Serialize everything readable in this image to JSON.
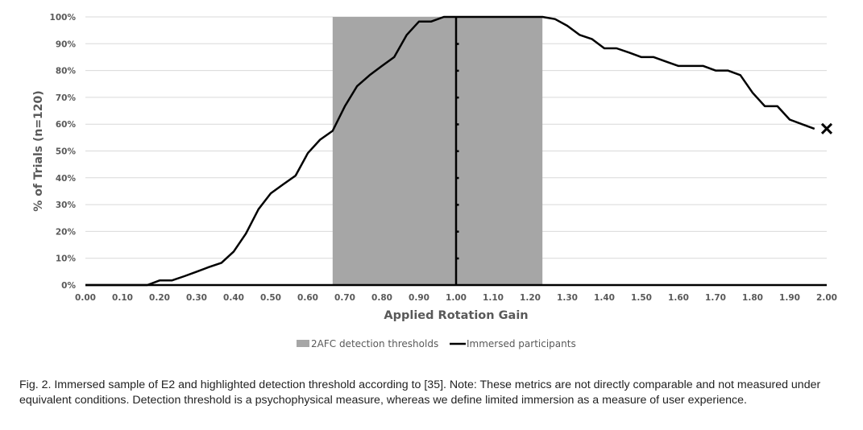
{
  "chart_data": {
    "type": "line",
    "xlabel": "Applied Rotation Gain",
    "ylabel": "% of Trials (n=120)",
    "xlim": [
      0,
      2
    ],
    "ylim": [
      0,
      100
    ],
    "x_ticks": [
      "0.00",
      "0.10",
      "0.20",
      "0.30",
      "0.40",
      "0.50",
      "0.60",
      "0.70",
      "0.80",
      "0.90",
      "1.00",
      "1.10",
      "1.20",
      "1.30",
      "1.40",
      "1.50",
      "1.60",
      "1.70",
      "1.80",
      "1.90",
      "2.00"
    ],
    "y_ticks": [
      "0%",
      "10%",
      "20%",
      "30%",
      "40%",
      "50%",
      "60%",
      "70%",
      "80%",
      "90%",
      "100%"
    ],
    "grid": "horizontal",
    "legend_position": "bottom",
    "legend": [
      "2AFC detection thresholds",
      "Immersed participants"
    ],
    "threshold_band": {
      "name": "2AFC detection thresholds",
      "from": 0.667,
      "to": 1.233,
      "color": "#a6a6a6"
    },
    "reference_line": {
      "x": 1.0
    },
    "series": [
      {
        "name": "Immersed participants",
        "color": "#000000",
        "x": [
          0.0,
          0.1,
          0.167,
          0.2,
          0.233,
          0.267,
          0.3,
          0.333,
          0.367,
          0.4,
          0.433,
          0.467,
          0.5,
          0.533,
          0.567,
          0.6,
          0.633,
          0.667,
          0.7,
          0.733,
          0.767,
          0.8,
          0.833,
          0.867,
          0.9,
          0.933,
          0.967,
          1.0,
          1.1,
          1.2,
          1.233,
          1.267,
          1.3,
          1.333,
          1.367,
          1.4,
          1.433,
          1.467,
          1.5,
          1.533,
          1.567,
          1.6,
          1.633,
          1.667,
          1.7,
          1.733,
          1.767,
          1.8,
          1.833,
          1.867,
          1.9,
          1.933,
          1.967
        ],
        "values": [
          0,
          0,
          0,
          1.7,
          1.7,
          3.3,
          5,
          6.7,
          8.3,
          12.5,
          19.2,
          28.3,
          34.2,
          37.5,
          40.8,
          49.2,
          54.2,
          57.5,
          66.7,
          74.2,
          78.3,
          81.7,
          85,
          93.3,
          98.3,
          98.3,
          100,
          100,
          100,
          100,
          100,
          99.2,
          96.7,
          93.3,
          91.7,
          88.3,
          88.3,
          86.7,
          85,
          85,
          83.3,
          81.7,
          81.7,
          81.7,
          80,
          80,
          78.3,
          71.7,
          66.7,
          66.7,
          61.7,
          60,
          58.3
        ]
      }
    ],
    "end_marker": {
      "x": 2.0,
      "y": 58.3,
      "symbol": "×"
    }
  },
  "caption": "Fig. 2. Immersed sample of E2 and highlighted detection threshold according to [35]. Note: These metrics are not directly comparable and not measured under equivalent conditions. Detection threshold is a psychophysical measure, whereas we define limited immersion as a measure of user experience."
}
